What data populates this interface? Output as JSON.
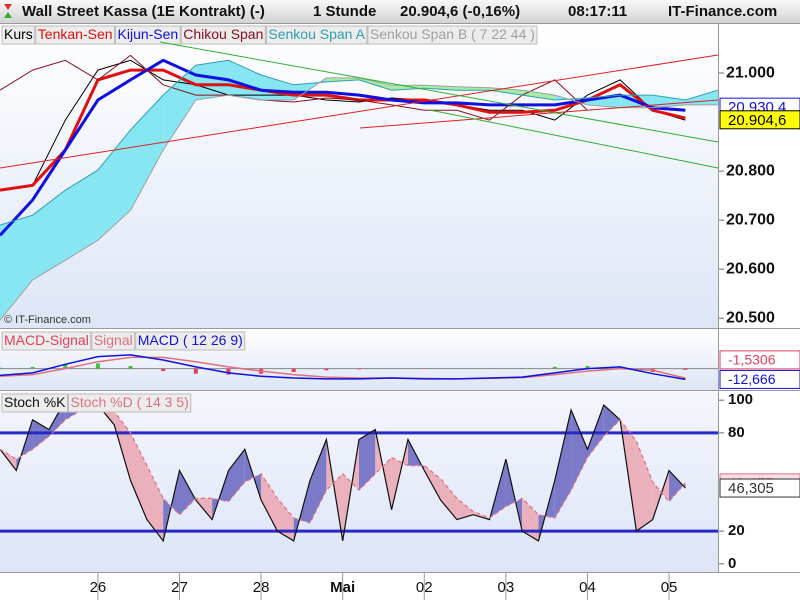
{
  "header": {
    "instrument": "Wall Street Kassa (1E Kontrakt) (-)",
    "interval": "1 Stunde",
    "quote": "20.904,6 (-0,16%)",
    "time": "08:17:11",
    "site": "IT-Finance.com"
  },
  "chart_data": [
    {
      "type": "ichimoku",
      "watermark": "© IT-Finance.com",
      "x": [
        -1.2,
        -0.8,
        -0.4,
        0,
        0.4,
        0.8,
        1.2,
        1.6,
        2.0,
        2.4,
        2.8,
        3.2,
        3.6,
        4.0,
        4.4,
        4.8,
        5.2,
        5.6,
        6.0,
        6.4,
        6.8,
        7.2,
        7.6
      ],
      "xlim": [
        -1.2,
        7.6
      ],
      "ylim": [
        20480,
        21100
      ],
      "yticks": [
        {
          "value": 20500,
          "label": "20.500"
        },
        {
          "value": 20600,
          "label": "20.600"
        },
        {
          "value": 20700,
          "label": "20.700"
        },
        {
          "value": 20800,
          "label": "20.800"
        },
        {
          "value": 21000,
          "label": "21.000"
        }
      ],
      "cloud_colors": [
        "#86e6f2",
        "#a6eca6"
      ],
      "series": [
        {
          "name": "Kurs",
          "color": "#000000",
          "values": [
            20761,
            20771,
            20904,
            21006,
            21026,
            20986,
            20976,
            20955,
            20955,
            20955,
            20945,
            20941,
            20949,
            20945,
            20935,
            20924,
            20924,
            20904,
            20955,
            20986,
            20924,
            20904,
            null
          ]
        },
        {
          "name": "Tenkan-Sen",
          "color": "#e01010",
          "width": 3,
          "values": [
            20761,
            20771,
            20843,
            20986,
            21006,
            21006,
            20976,
            20976,
            20965,
            20955,
            20955,
            20945,
            20945,
            20945,
            20935,
            20920,
            20920,
            20924,
            20945,
            20976,
            20924,
            20908,
            null
          ]
        },
        {
          "name": "Kijun-Sen",
          "color": "#1010e0",
          "width": 3,
          "values": [
            20669,
            20741,
            20843,
            20945,
            20986,
            21026,
            20996,
            20986,
            20965,
            20961,
            20961,
            20955,
            20945,
            20939,
            20939,
            20935,
            20935,
            20935,
            20945,
            20955,
            20929,
            20924,
            null
          ]
        },
        {
          "name": "Chikou Span",
          "color": "#8a1020",
          "values": [
            20965,
            21006,
            21026,
            20986,
            21036,
            20976,
            20955,
            20955,
            20945,
            20941,
            20949,
            20945,
            20935,
            20924,
            20924,
            20904,
            20955,
            20986,
            20924,
            null,
            null,
            null,
            null
          ]
        },
        {
          "name": "Senkou Span A",
          "color": "#30a0b0",
          "values": [
            20690,
            20710,
            20761,
            20802,
            20884,
            20955,
            21016,
            21026,
            20996,
            20976,
            20982,
            20986,
            20965,
            20969,
            20965,
            20965,
            20955,
            20945,
            20949,
            20955,
            20955,
            20945,
            20965
          ]
        },
        {
          "name": "Senkou Span B ( 7 22 44 )",
          "color": "#a0a0a0",
          "values": [
            20496,
            20578,
            20618,
            20659,
            20720,
            20843,
            20945,
            20955,
            20945,
            20945,
            20990,
            20990,
            20975,
            20975,
            20972,
            20970,
            20965,
            20955,
            20935,
            20929,
            20929,
            20935,
            20935
          ]
        }
      ],
      "price_labels": [
        {
          "value": 20930.4,
          "label": "20.930,4",
          "color": "#1010e0",
          "fill": "#ffffff"
        },
        {
          "value": 20904.6,
          "label": "20.904,6",
          "color": "#000000",
          "fill": "#ffff00"
        }
      ]
    },
    {
      "type": "macd",
      "xlim": [
        -1.2,
        7.6
      ],
      "ylim": [
        -25,
        45
      ],
      "positive_color": "#40c040",
      "negative_color": "#e04060",
      "series": [
        {
          "name": "MACD-Signal",
          "kind": "histogram",
          "color": "#e04060",
          "values": [
            1,
            2,
            5,
            6,
            3,
            -3,
            -6,
            -7,
            -6,
            -4,
            -2,
            -1,
            0,
            -0.5,
            0,
            0.5,
            0.5,
            2,
            3,
            2,
            -4,
            -1.5306,
            null
          ],
          "last_label": "-1,5306"
        },
        {
          "name": "Signal",
          "kind": "line",
          "color": "#e07080",
          "values": [
            -9,
            -7,
            0,
            8,
            13,
            13,
            8,
            2,
            -3,
            -7,
            -10,
            -11,
            -11,
            -11.5,
            -12,
            -11.5,
            -10.5,
            -7,
            -3,
            0,
            -2,
            -11.135,
            null
          ]
        },
        {
          "name": "MACD ( 12 26 9)",
          "kind": "line",
          "color": "#1010e0",
          "values": [
            -8,
            -5,
            5,
            14,
            16,
            10,
            2,
            -5,
            -9,
            -11,
            -12,
            -12,
            -11,
            -12,
            -12,
            -11,
            -10,
            -5,
            0,
            2,
            -6,
            -12.666,
            null
          ],
          "last_label": "-12,666"
        }
      ]
    },
    {
      "type": "stochastic",
      "x": [
        -1.2,
        -1.0,
        -0.8,
        -0.6,
        -0.4,
        -0.2,
        0,
        0.2,
        0.4,
        0.6,
        0.8,
        1.0,
        1.2,
        1.4,
        1.6,
        1.8,
        2.0,
        2.2,
        2.4,
        2.6,
        2.8,
        3.0,
        3.2,
        3.4,
        3.6,
        3.8,
        4.0,
        4.2,
        4.4,
        4.6,
        4.8,
        5.0,
        5.2,
        5.4,
        5.6,
        5.8,
        6.0,
        6.2,
        6.4,
        6.6,
        6.8,
        7.0,
        7.2,
        7.4,
        7.6
      ],
      "xlim": [
        -1.2,
        7.6
      ],
      "ylim": [
        -5,
        105
      ],
      "yticks": [
        0,
        20,
        80,
        100
      ],
      "levels": [
        80,
        20
      ],
      "level_color": "#2828c8",
      "xticks": [
        {
          "value": 0,
          "label": "26"
        },
        {
          "value": 1,
          "label": "27"
        },
        {
          "value": 2,
          "label": "28"
        },
        {
          "value": 3,
          "label": "Mai"
        },
        {
          "value": 4,
          "label": "02"
        },
        {
          "value": 5,
          "label": "03"
        },
        {
          "value": 6,
          "label": "04"
        },
        {
          "value": 7,
          "label": "05"
        }
      ],
      "fill_colors": [
        "#7a7ac8",
        "#eab0bc"
      ],
      "series": [
        {
          "name": "Stoch %K",
          "color": "#101010",
          "values": [
            70,
            57,
            88,
            82,
            100,
            94,
            97,
            85,
            51,
            27,
            14,
            57,
            39,
            27,
            57,
            70,
            39,
            20,
            14,
            51,
            76,
            14,
            76,
            82,
            33,
            76,
            57,
            39,
            27,
            30,
            27,
            64,
            20,
            14,
            51,
            94,
            70,
            97,
            88,
            20,
            27,
            57,
            46.305,
            null,
            null
          ],
          "last_label": "46,305",
          "fill": "#ffffff"
        },
        {
          "name": "Stoch %D ( 14 3 5)",
          "color": "#e07080",
          "dashed": true,
          "values": [
            70,
            64,
            70,
            78,
            88,
            94,
            97,
            93,
            80,
            60,
            40,
            30,
            40,
            40,
            38,
            50,
            55,
            40,
            28,
            25,
            45,
            55,
            45,
            55,
            65,
            60,
            60,
            52,
            40,
            32,
            28,
            35,
            40,
            30,
            28,
            45,
            65,
            78,
            88,
            75,
            50,
            38,
            49.475,
            null,
            null
          ],
          "last_label": "49,475",
          "fill": "#f6dde2"
        }
      ]
    }
  ]
}
